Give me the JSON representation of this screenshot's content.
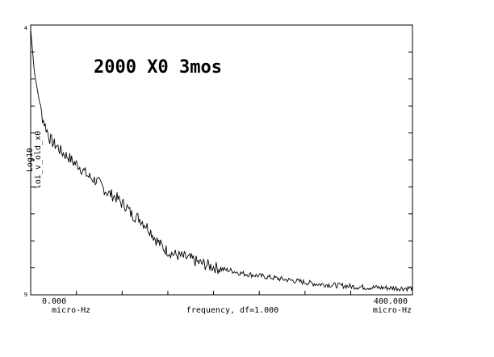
{
  "chart_data": {
    "type": "line",
    "title": "2000 X0 3mos",
    "xlabel": "frequency, df=1.000",
    "ylabel_line1": "Log10",
    "ylabel_line2": "loi_v_old_x0",
    "x_unit_left": "micro-Hz",
    "x_unit_right": "micro-Hz",
    "x_tick_left": "0.000",
    "x_tick_right": "400.000",
    "y_tick_top": "4",
    "y_tick_bottom": "9",
    "xlim": [
      0,
      400
    ],
    "ylim": [
      0,
      1
    ],
    "grid": false,
    "legend": "none",
    "line_color": "#000000",
    "series": [
      {
        "x": [
          0,
          4,
          8,
          12,
          16,
          20,
          24,
          28,
          32,
          36,
          40,
          45,
          50,
          55,
          60,
          65,
          70,
          75,
          80,
          85,
          90,
          95,
          100,
          105,
          110,
          115,
          120,
          125,
          130,
          135,
          140,
          145,
          150,
          155,
          160,
          165,
          170,
          175,
          180,
          185,
          190,
          195,
          200,
          210,
          220,
          230,
          240,
          250,
          260,
          270,
          280,
          290,
          300,
          310,
          320,
          330,
          340,
          350,
          360,
          370,
          380,
          390,
          400
        ],
        "y": [
          0.985,
          0.82,
          0.74,
          0.66,
          0.62,
          0.58,
          0.56,
          0.55,
          0.53,
          0.52,
          0.51,
          0.49,
          0.48,
          0.46,
          0.44,
          0.43,
          0.42,
          0.4,
          0.38,
          0.37,
          0.36,
          0.34,
          0.33,
          0.3,
          0.29,
          0.28,
          0.26,
          0.24,
          0.21,
          0.19,
          0.17,
          0.16,
          0.15,
          0.145,
          0.14,
          0.135,
          0.13,
          0.12,
          0.115,
          0.11,
          0.105,
          0.1,
          0.095,
          0.09,
          0.08,
          0.075,
          0.07,
          0.065,
          0.06,
          0.055,
          0.05,
          0.045,
          0.04,
          0.038,
          0.035,
          0.033,
          0.03,
          0.028,
          0.027,
          0.026,
          0.025,
          0.024,
          0.025
        ]
      }
    ]
  }
}
